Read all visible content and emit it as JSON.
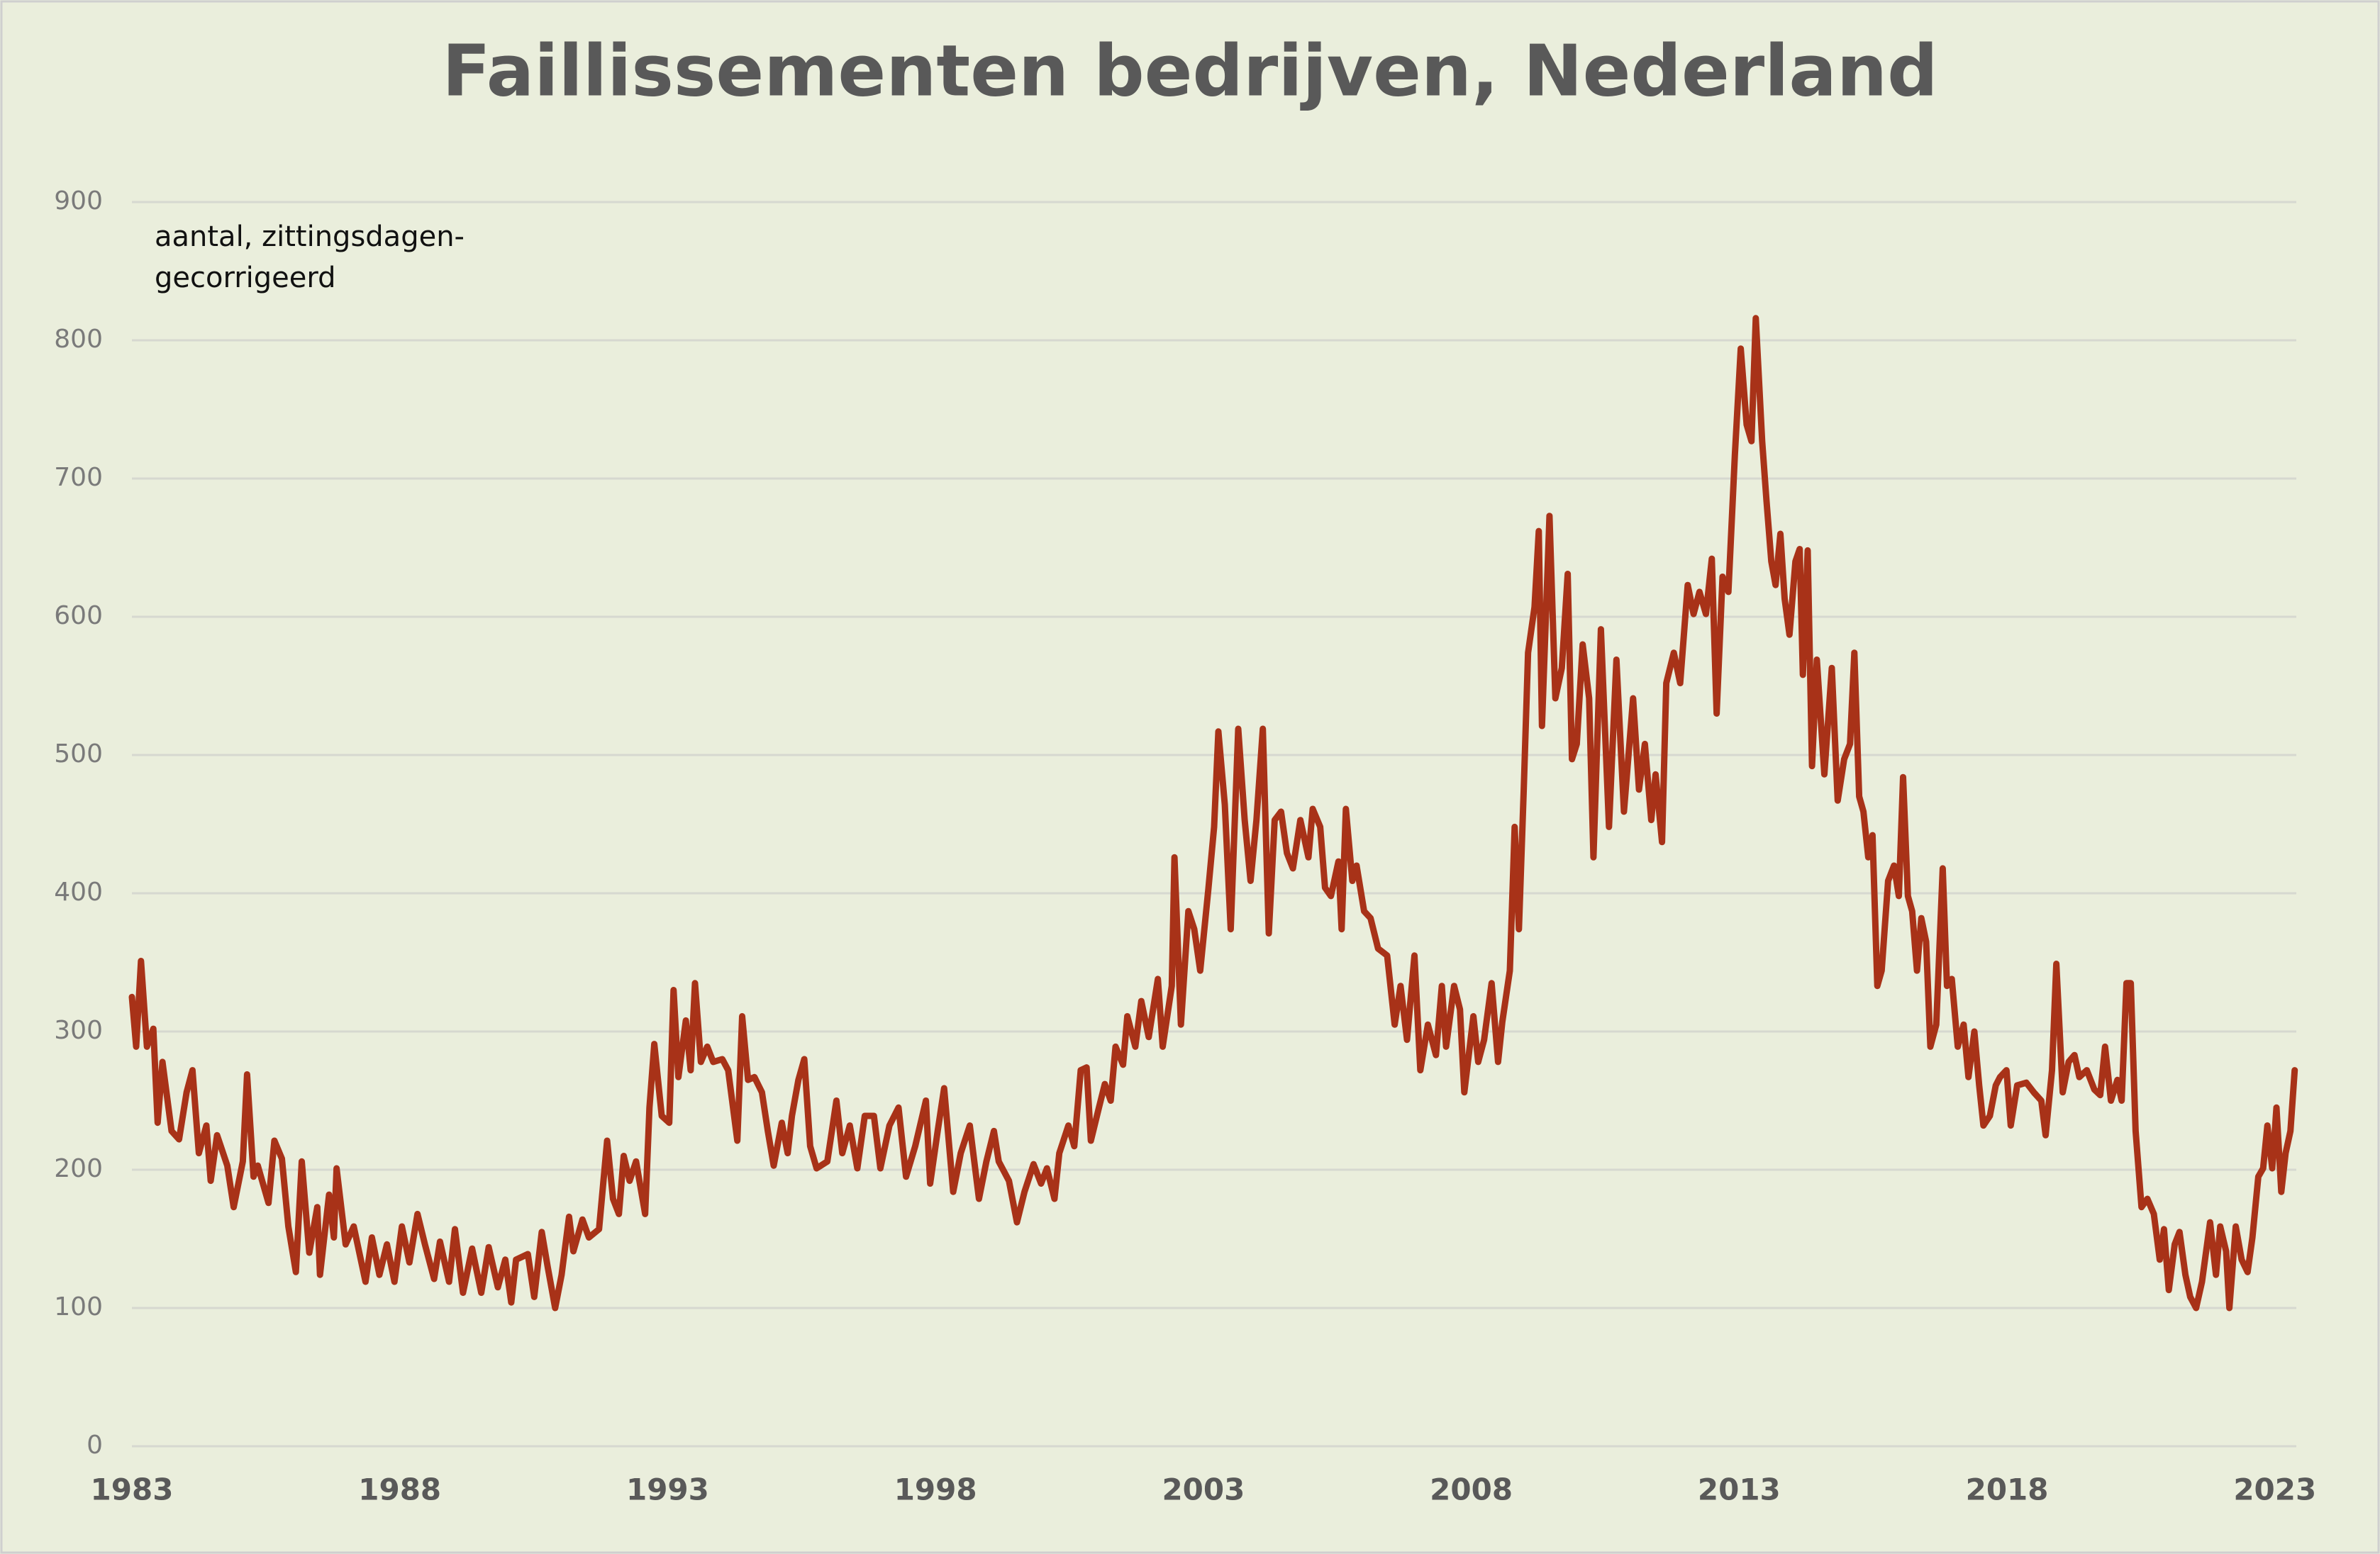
{
  "chart_data": {
    "type": "line",
    "title": "Faillissementen bedrijven, Nederland",
    "annotation": [
      "aantal, zittingsdagen-",
      "gecorrigeerd"
    ],
    "color": "#a83218",
    "grid": true,
    "xlim": [
      1983,
      2023.4
    ],
    "xticks": [
      1983,
      1988,
      1993,
      1998,
      2003,
      2008,
      2013,
      2018,
      2023
    ],
    "ylim": [
      0,
      900
    ],
    "yticks": [
      0,
      100,
      200,
      300,
      400,
      500,
      600,
      700,
      800,
      900
    ],
    "x": [
      1983.0,
      1983.08,
      1983.17,
      1983.28,
      1983.4,
      1983.48,
      1983.57,
      1983.74,
      1983.88,
      1984.02,
      1984.13,
      1984.25,
      1984.39,
      1984.47,
      1984.59,
      1984.78,
      1984.9,
      1985.07,
      1985.15,
      1985.27,
      1985.35,
      1985.55,
      1985.66,
      1985.8,
      1985.92,
      1986.06,
      1986.17,
      1986.31,
      1986.46,
      1986.51,
      1986.68,
      1986.77,
      1986.82,
      1986.99,
      1987.14,
      1987.36,
      1987.48,
      1987.62,
      1987.76,
      1987.9,
      1988.04,
      1988.18,
      1988.33,
      1988.47,
      1988.64,
      1988.75,
      1988.92,
      1989.03,
      1989.18,
      1989.35,
      1989.52,
      1989.66,
      1989.83,
      1989.97,
      1990.08,
      1990.17,
      1990.39,
      1990.51,
      1990.65,
      1990.76,
      1990.9,
      1991.02,
      1991.16,
      1991.24,
      1991.41,
      1991.53,
      1991.72,
      1991.87,
      1991.98,
      1992.09,
      1992.18,
      1992.29,
      1992.41,
      1992.58,
      1992.66,
      1992.75,
      1992.89,
      1993.03,
      1993.11,
      1993.2,
      1993.34,
      1993.43,
      1993.51,
      1993.62,
      1993.74,
      1993.85,
      1994.02,
      1994.13,
      1994.3,
      1994.39,
      1994.5,
      1994.62,
      1994.76,
      1994.87,
      1994.98,
      1995.13,
      1995.24,
      1995.32,
      1995.44,
      1995.55,
      1995.66,
      1995.78,
      1995.98,
      1996.15,
      1996.26,
      1996.4,
      1996.54,
      1996.68,
      1996.85,
      1996.97,
      1997.14,
      1997.31,
      1997.45,
      1997.62,
      1997.82,
      1997.9,
      1998.04,
      1998.16,
      1998.33,
      1998.47,
      1998.64,
      1998.81,
      1998.95,
      1999.09,
      1999.18,
      1999.37,
      1999.52,
      1999.66,
      1999.83,
      1999.97,
      2000.08,
      2000.22,
      2000.31,
      2000.48,
      2000.59,
      2000.71,
      2000.82,
      2000.9,
      2001.05,
      2001.16,
      2001.27,
      2001.36,
      2001.5,
      2001.58,
      2001.73,
      2001.84,
      2001.98,
      2002.15,
      2002.24,
      2002.41,
      2002.46,
      2002.58,
      2002.72,
      2002.83,
      2002.94,
      2003.09,
      2003.2,
      2003.28,
      2003.4,
      2003.51,
      2003.65,
      2003.77,
      2003.88,
      2003.99,
      2004.11,
      2004.22,
      2004.33,
      2004.45,
      2004.56,
      2004.67,
      2004.81,
      2004.96,
      2005.04,
      2005.18,
      2005.27,
      2005.38,
      2005.52,
      2005.58,
      2005.66,
      2005.78,
      2005.86,
      2006.0,
      2006.12,
      2006.26,
      2006.43,
      2006.57,
      2006.68,
      2006.8,
      2006.94,
      2007.05,
      2007.19,
      2007.34,
      2007.45,
      2007.53,
      2007.68,
      2007.79,
      2007.87,
      2008.04,
      2008.13,
      2008.24,
      2008.38,
      2008.5,
      2008.58,
      2008.72,
      2008.81,
      2008.89,
      2008.98,
      2009.06,
      2009.18,
      2009.26,
      2009.32,
      2009.46,
      2009.57,
      2009.69,
      2009.8,
      2009.88,
      2009.97,
      2010.08,
      2010.2,
      2010.28,
      2010.42,
      2010.57,
      2010.71,
      2010.85,
      2011.02,
      2011.13,
      2011.24,
      2011.36,
      2011.44,
      2011.56,
      2011.64,
      2011.78,
      2011.9,
      2012.04,
      2012.15,
      2012.26,
      2012.38,
      2012.49,
      2012.58,
      2012.69,
      2012.8,
      2012.92,
      2013.03,
      2013.14,
      2013.23,
      2013.31,
      2013.43,
      2013.51,
      2013.6,
      2013.68,
      2013.77,
      2013.85,
      2013.94,
      2014.05,
      2014.13,
      2014.19,
      2014.28,
      2014.36,
      2014.45,
      2014.59,
      2014.73,
      2014.84,
      2014.96,
      2015.07,
      2015.15,
      2015.24,
      2015.32,
      2015.41,
      2015.49,
      2015.58,
      2015.66,
      2015.78,
      2015.89,
      2015.98,
      2016.06,
      2016.15,
      2016.23,
      2016.32,
      2016.4,
      2016.49,
      2016.57,
      2016.68,
      2016.8,
      2016.88,
      2016.97,
      2017.08,
      2017.19,
      2017.28,
      2017.39,
      2017.48,
      2017.56,
      2017.68,
      2017.79,
      2017.87,
      2017.99,
      2018.07,
      2018.19,
      2018.36,
      2018.5,
      2018.64,
      2018.72,
      2018.84,
      2018.92,
      2019.04,
      2019.15,
      2019.26,
      2019.35,
      2019.49,
      2019.63,
      2019.74,
      2019.83,
      2019.94,
      2020.06,
      2020.14,
      2020.23,
      2020.31,
      2020.4,
      2020.51,
      2020.62,
      2020.74,
      2020.85,
      2020.93,
      2021.02,
      2021.13,
      2021.22,
      2021.33,
      2021.42,
      2021.53,
      2021.64,
      2021.79,
      2021.9,
      2021.98,
      2022.09,
      2022.15,
      2022.27,
      2022.38,
      2022.49,
      2022.58,
      2022.69,
      2022.78,
      2022.86,
      2022.95,
      2023.03,
      2023.12,
      2023.2,
      2023.29,
      2023.37
    ],
    "values": [
      325,
      289,
      351,
      289,
      302,
      234,
      278,
      228,
      222,
      256,
      272,
      212,
      232,
      192,
      225,
      203,
      173,
      206,
      269,
      195,
      203,
      176,
      221,
      208,
      159,
      126,
      206,
      140,
      173,
      124,
      182,
      151,
      201,
      146,
      159,
      119,
      151,
      124,
      146,
      119,
      159,
      133,
      168,
      146,
      121,
      148,
      119,
      157,
      111,
      143,
      111,
      144,
      115,
      135,
      104,
      135,
      139,
      108,
      155,
      130,
      100,
      124,
      166,
      141,
      164,
      151,
      157,
      221,
      179,
      168,
      210,
      192,
      206,
      168,
      245,
      291,
      239,
      234,
      330,
      267,
      308,
      272,
      335,
      278,
      289,
      278,
      280,
      272,
      221,
      311,
      265,
      267,
      256,
      228,
      203,
      234,
      212,
      239,
      265,
      280,
      217,
      201,
      206,
      250,
      212,
      232,
      201,
      239,
      239,
      201,
      232,
      245,
      195,
      217,
      250,
      190,
      228,
      259,
      184,
      212,
      232,
      179,
      206,
      228,
      206,
      192,
      162,
      184,
      204,
      190,
      201,
      179,
      212,
      232,
      217,
      272,
      274,
      221,
      245,
      262,
      250,
      289,
      276,
      311,
      289,
      322,
      296,
      338,
      289,
      333,
      426,
      305,
      387,
      374,
      344,
      402,
      448,
      517,
      464,
      374,
      519,
      453,
      409,
      453,
      519,
      371,
      453,
      459,
      429,
      418,
      453,
      426,
      461,
      448,
      404,
      398,
      423,
      374,
      461,
      409,
      420,
      387,
      382,
      360,
      355,
      305,
      333,
      294,
      355,
      272,
      305,
      283,
      333,
      289,
      333,
      316,
      256,
      311,
      278,
      294,
      335,
      278,
      307,
      344,
      448,
      374,
      475,
      574,
      607,
      662,
      521,
      673,
      541,
      563,
      631,
      497,
      508,
      580,
      541,
      426,
      591,
      448,
      569,
      459,
      541,
      475,
      508,
      453,
      486,
      437,
      552,
      574,
      552,
      623,
      602,
      618,
      602,
      642,
      530,
      629,
      618,
      717,
      794,
      739,
      727,
      816,
      727,
      684,
      640,
      623,
      660,
      613,
      587,
      640,
      649,
      558,
      648,
      492,
      569,
      486,
      563,
      467,
      497,
      508,
      574,
      470,
      459,
      426,
      442,
      333,
      344,
      409,
      420,
      398,
      484,
      398,
      387,
      344,
      382,
      365,
      289,
      305,
      418,
      333,
      338,
      289,
      305,
      267,
      300,
      261,
      232,
      239,
      261,
      267,
      272,
      232,
      261,
      263,
      256,
      250,
      225,
      272,
      349,
      256,
      278,
      283,
      267,
      272,
      258,
      254,
      289,
      250,
      265,
      250,
      335,
      335,
      228,
      173,
      179,
      168,
      135,
      157,
      113,
      146,
      155,
      124,
      108,
      100,
      119,
      162,
      124,
      159,
      141,
      100,
      159,
      135,
      126,
      151,
      195,
      201,
      232,
      201,
      245,
      184,
      212,
      228,
      272
    ]
  }
}
